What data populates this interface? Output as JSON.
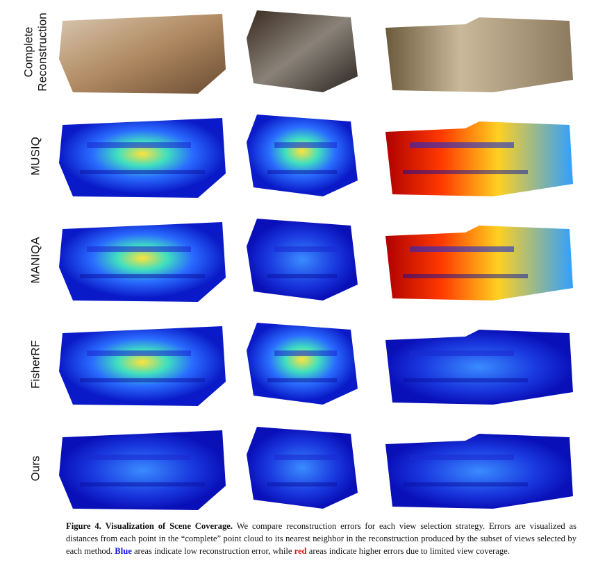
{
  "figure": {
    "row_labels": [
      {
        "lines": [
          "Complete",
          "Reconstruction"
        ]
      },
      {
        "lines": [
          "MUSIQ"
        ]
      },
      {
        "lines": [
          "MANIQA"
        ]
      },
      {
        "lines": [
          "FisherRF"
        ]
      },
      {
        "lines": [
          "Ours"
        ]
      }
    ],
    "caption": {
      "label": "Figure 4.",
      "title": "Visualization of Scene Coverage.",
      "text": "We compare reconstruction errors for each view selection strategy. Errors are visualized as distances from each point in the “complete” point cloud to its nearest neighbor in the reconstruction produced by the subset of views selected by each method.",
      "blue_word": "Blue",
      "middle": "areas indicate low reconstruction error, while",
      "red_word": "red",
      "ending": "areas indicate higher errors due to limited view coverage."
    }
  }
}
